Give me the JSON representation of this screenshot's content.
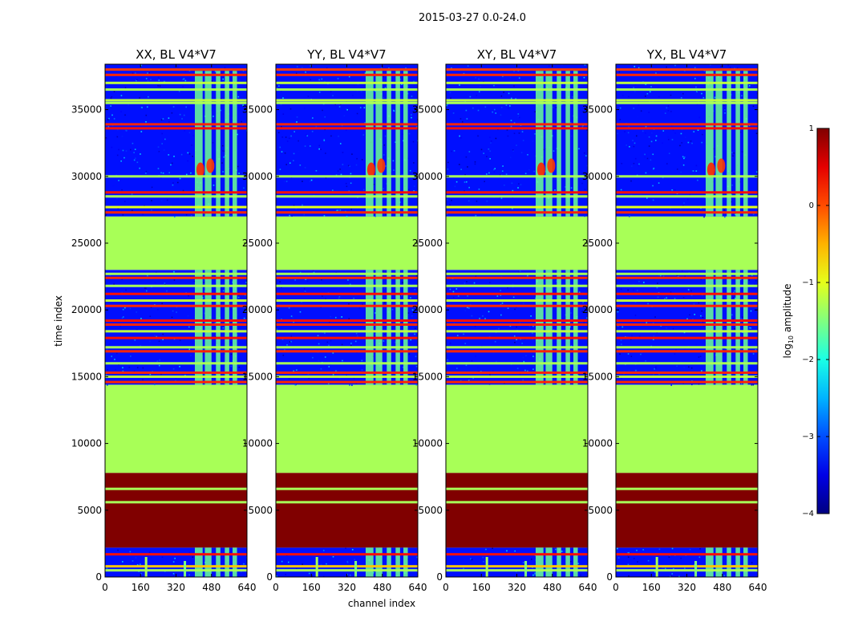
{
  "chart_data": {
    "type": "heatmap",
    "suptitle": "2015-03-27 0.0-24.0",
    "xlabel": "channel index",
    "ylabel": "time index",
    "xlim": [
      0,
      640
    ],
    "ylim": [
      0,
      38400
    ],
    "xticks": [
      0,
      160,
      320,
      480,
      640
    ],
    "yticks": [
      0,
      5000,
      10000,
      15000,
      20000,
      25000,
      30000,
      35000
    ],
    "colormap": "jet",
    "panels": [
      {
        "title": "XX, BL V4*V7"
      },
      {
        "title": "YY, BL V4*V7"
      },
      {
        "title": "XY, BL V4*V7"
      },
      {
        "title": "YX, BL V4*V7"
      }
    ],
    "colorbar": {
      "label": "log",
      "label_sub": "10",
      "label_rest": " amplitude",
      "range": [
        -4,
        1
      ],
      "ticks": [
        "1",
        "0",
        "−1",
        "−2",
        "−3",
        "−4"
      ]
    },
    "blocks": [
      {
        "t0": 0,
        "t1": 2200,
        "ch0": 0,
        "ch1": 640,
        "value": -3.3,
        "desc": "noisy background"
      },
      {
        "t0": 2200,
        "t1": 7800,
        "ch0": 0,
        "ch1": 640,
        "value": 1.0,
        "desc": "saturated block"
      },
      {
        "t0": 7800,
        "t1": 14400,
        "ch0": 0,
        "ch1": 640,
        "value": -1.3,
        "desc": "flat flagged block"
      },
      {
        "t0": 14400,
        "t1": 23000,
        "ch0": 0,
        "ch1": 640,
        "value": -3.3,
        "desc": "noisy background"
      },
      {
        "t0": 23000,
        "t1": 27000,
        "ch0": 0,
        "ch1": 640,
        "value": -1.3,
        "desc": "flagged band"
      },
      {
        "t0": 27000,
        "t1": 38400,
        "ch0": 0,
        "ch1": 640,
        "value": -3.3,
        "desc": "noisy background"
      }
    ],
    "rfi_channels": [
      [
        405,
        440
      ],
      [
        450,
        480
      ],
      [
        500,
        520
      ],
      [
        540,
        560
      ],
      [
        575,
        595
      ]
    ],
    "rfi_value": -1.6,
    "hot_spots": [
      {
        "t": 30500,
        "ch": 430,
        "value": 0.2
      },
      {
        "t": 30800,
        "ch": 475,
        "value": 0.1
      }
    ],
    "lines": [
      {
        "t": 38000,
        "value": 0.1
      },
      {
        "t": 37600,
        "value": 0.2
      },
      {
        "t": 37000,
        "value": -1.2
      },
      {
        "t": 36500,
        "value": -1.3
      },
      {
        "t": 35700,
        "value": -1.2
      },
      {
        "t": 35500,
        "value": -1.3
      },
      {
        "t": 33900,
        "value": 0.2
      },
      {
        "t": 33600,
        "value": 0.3
      },
      {
        "t": 30000,
        "value": -1.3
      },
      {
        "t": 28800,
        "value": 0.3
      },
      {
        "t": 28500,
        "value": -1.3
      },
      {
        "t": 27700,
        "value": -1.0
      },
      {
        "t": 27300,
        "value": 0.2
      },
      {
        "t": 22700,
        "value": -1.3
      },
      {
        "t": 22400,
        "value": 0.2
      },
      {
        "t": 21800,
        "value": -1.3
      },
      {
        "t": 21200,
        "value": 0.3
      },
      {
        "t": 20700,
        "value": -1.2
      },
      {
        "t": 20300,
        "value": 0.2
      },
      {
        "t": 19200,
        "value": 0.3
      },
      {
        "t": 18900,
        "value": 0.2
      },
      {
        "t": 18400,
        "value": -1.2
      },
      {
        "t": 17900,
        "value": 0.3
      },
      {
        "t": 17200,
        "value": -1.3
      },
      {
        "t": 16900,
        "value": 0.2
      },
      {
        "t": 16000,
        "value": -1.3
      },
      {
        "t": 15300,
        "value": 0.2
      },
      {
        "t": 15000,
        "value": -1.2
      },
      {
        "t": 14600,
        "value": 0.2
      },
      {
        "t": 6600,
        "value": -1.3
      },
      {
        "t": 5600,
        "value": -1.3
      },
      {
        "t": 1700,
        "value": 0.3
      },
      {
        "t": 800,
        "value": -0.6
      },
      {
        "t": 500,
        "value": -1.3
      }
    ],
    "spikes": [
      {
        "ch": 185,
        "t0": 0,
        "t1": 1500,
        "value": -1.3
      },
      {
        "ch": 360,
        "t0": 0,
        "t1": 1200,
        "value": -1.5
      }
    ]
  }
}
